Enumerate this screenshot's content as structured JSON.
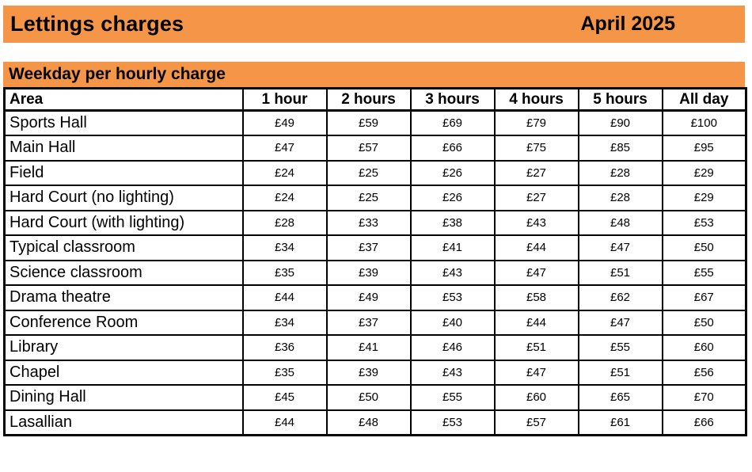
{
  "header": {
    "title": "Lettings charges",
    "date": "April 2025"
  },
  "section": {
    "title": "Weekday per hourly charge"
  },
  "colors": {
    "banner_orange": "#F49548",
    "border_black": "#000000",
    "background": "#FFFFFF"
  },
  "table": {
    "columns": [
      "Area",
      "1 hour",
      "2 hours",
      "3 hours",
      "4 hours",
      "5 hours",
      "All day"
    ],
    "rows": [
      {
        "area": "Sports Hall",
        "prices": [
          "£49",
          "£59",
          "£69",
          "£79",
          "£90",
          "£100"
        ]
      },
      {
        "area": "Main Hall",
        "prices": [
          "£47",
          "£57",
          "£66",
          "£75",
          "£85",
          "£95"
        ]
      },
      {
        "area": "Field",
        "prices": [
          "£24",
          "£25",
          "£26",
          "£27",
          "£28",
          "£29"
        ]
      },
      {
        "area": "Hard Court (no lighting)",
        "prices": [
          "£24",
          "£25",
          "£26",
          "£27",
          "£28",
          "£29"
        ]
      },
      {
        "area": "Hard Court (with lighting)",
        "prices": [
          "£28",
          "£33",
          "£38",
          "£43",
          "£48",
          "£53"
        ]
      },
      {
        "area": "Typical classroom",
        "prices": [
          "£34",
          "£37",
          "£41",
          "£44",
          "£47",
          "£50"
        ]
      },
      {
        "area": "Science classroom",
        "prices": [
          "£35",
          "£39",
          "£43",
          "£47",
          "£51",
          "£55"
        ]
      },
      {
        "area": "Drama theatre",
        "prices": [
          "£44",
          "£49",
          "£53",
          "£58",
          "£62",
          "£67"
        ]
      },
      {
        "area": "Conference Room",
        "prices": [
          "£34",
          "£37",
          "£40",
          "£44",
          "£47",
          "£50"
        ]
      },
      {
        "area": "Library",
        "prices": [
          "£36",
          "£41",
          "£46",
          "£51",
          "£55",
          "£60"
        ]
      },
      {
        "area": "Chapel",
        "prices": [
          "£35",
          "£39",
          "£43",
          "£47",
          "£51",
          "£56"
        ]
      },
      {
        "area": "Dining Hall",
        "prices": [
          "£45",
          "£50",
          "£55",
          "£60",
          "£65",
          "£70"
        ]
      },
      {
        "area": "Lasallian",
        "prices": [
          "£44",
          "£48",
          "£53",
          "£57",
          "£61",
          "£66"
        ]
      }
    ]
  }
}
